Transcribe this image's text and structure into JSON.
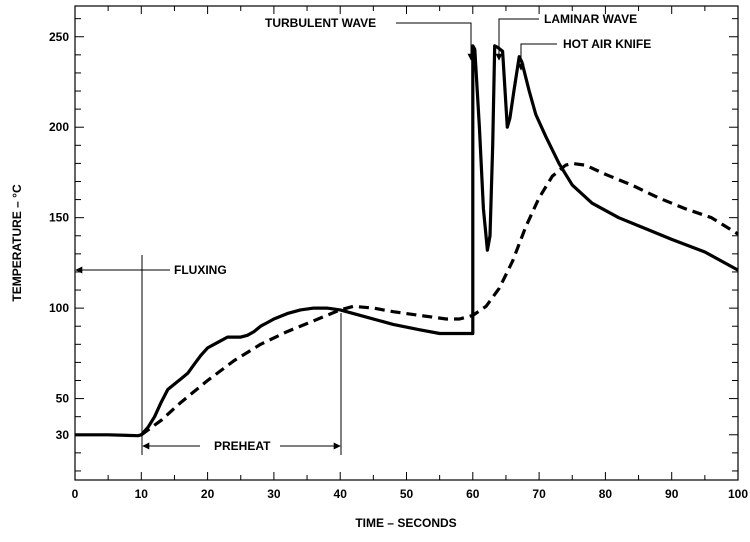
{
  "chart_data": {
    "type": "line",
    "xlabel": "TIME – SECONDS",
    "ylabel": "TEMPERATURE – °C",
    "xlim": [
      0,
      100
    ],
    "ylim": [
      5,
      267
    ],
    "x_ticks": [
      0,
      10,
      20,
      30,
      40,
      50,
      60,
      70,
      80,
      90,
      100
    ],
    "y_ticks": [
      30,
      50,
      100,
      150,
      200,
      250
    ],
    "grid": false,
    "legend": "none",
    "series": [
      {
        "style": "solid",
        "color": "#000000",
        "points": [
          [
            0,
            30
          ],
          [
            5,
            30
          ],
          [
            9.5,
            29.5
          ],
          [
            10,
            30
          ],
          [
            11,
            34
          ],
          [
            12,
            40
          ],
          [
            13,
            48
          ],
          [
            14,
            55
          ],
          [
            15,
            58
          ],
          [
            16,
            61
          ],
          [
            17,
            64
          ],
          [
            18,
            69
          ],
          [
            19,
            74
          ],
          [
            20,
            78
          ],
          [
            21,
            80
          ],
          [
            22,
            82
          ],
          [
            23,
            84
          ],
          [
            24,
            84
          ],
          [
            25,
            84
          ],
          [
            26,
            85
          ],
          [
            27,
            87
          ],
          [
            28,
            90
          ],
          [
            29,
            92
          ],
          [
            30,
            94
          ],
          [
            32,
            97
          ],
          [
            34,
            99
          ],
          [
            36,
            100
          ],
          [
            38,
            100
          ],
          [
            40,
            99
          ],
          [
            44,
            95
          ],
          [
            48,
            91
          ],
          [
            52,
            88
          ],
          [
            55,
            86
          ],
          [
            58,
            86
          ],
          [
            60,
            86
          ],
          [
            60,
            245
          ],
          [
            60.3,
            243
          ],
          [
            61,
            200
          ],
          [
            61.6,
            155
          ],
          [
            62.2,
            132
          ],
          [
            62.6,
            140
          ],
          [
            63,
            190
          ],
          [
            63.3,
            245
          ],
          [
            63.8,
            244
          ],
          [
            64.5,
            242
          ],
          [
            65.2,
            200
          ],
          [
            65.6,
            205
          ],
          [
            66.2,
            220
          ],
          [
            67,
            239
          ],
          [
            67.4,
            236
          ],
          [
            68.5,
            220
          ],
          [
            69.5,
            207
          ],
          [
            71,
            195
          ],
          [
            73,
            180
          ],
          [
            75,
            168
          ],
          [
            78,
            158
          ],
          [
            82,
            150
          ],
          [
            86,
            144
          ],
          [
            90,
            138
          ],
          [
            95,
            131
          ],
          [
            100,
            121
          ]
        ]
      },
      {
        "style": "dashed",
        "color": "#000000",
        "points": [
          [
            10,
            30
          ],
          [
            13,
            38
          ],
          [
            16,
            48
          ],
          [
            20,
            60
          ],
          [
            24,
            71
          ],
          [
            28,
            80
          ],
          [
            32,
            87
          ],
          [
            36,
            93
          ],
          [
            40,
            99
          ],
          [
            42,
            101
          ],
          [
            45,
            100
          ],
          [
            48,
            98
          ],
          [
            52,
            96
          ],
          [
            56,
            94
          ],
          [
            58,
            94
          ],
          [
            60,
            96
          ],
          [
            62,
            101
          ],
          [
            64,
            111
          ],
          [
            66,
            126
          ],
          [
            68,
            145
          ],
          [
            70,
            161
          ],
          [
            72,
            173
          ],
          [
            74,
            179
          ],
          [
            75,
            180
          ],
          [
            77,
            179
          ],
          [
            80,
            174
          ],
          [
            84,
            168
          ],
          [
            88,
            161
          ],
          [
            92,
            155
          ],
          [
            96,
            150
          ],
          [
            100,
            141
          ]
        ]
      }
    ],
    "annotations": {
      "fluxing": "FLUXING",
      "preheat": "PREHEAT",
      "turbulent_wave": "TURBULENT WAVE",
      "laminar_wave": "LAMINAR WAVE",
      "hot_air_knife": "HOT AIR KNIFE"
    }
  }
}
